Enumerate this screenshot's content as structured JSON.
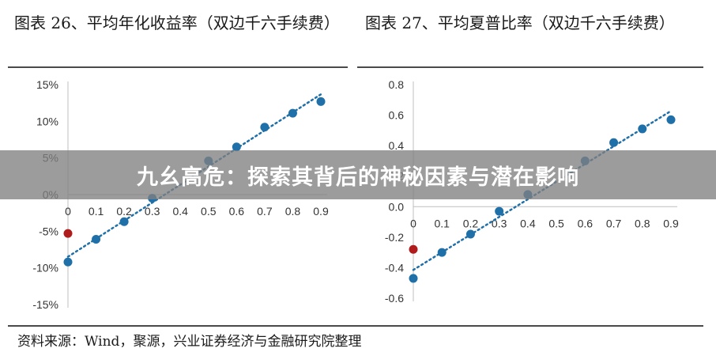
{
  "panels": {
    "left_title": "图表 26、平均年化收益率（双边千六手续费）",
    "right_title": "图表 27、平均夏普比率（双边千六手续费）"
  },
  "banner": {
    "text": "九幺高危：探索其背后的神秘因素与潜在影响"
  },
  "source": {
    "text": "资料来源：Wind，聚源，兴业证券经济与金融研究院整理"
  },
  "colors": {
    "point": "#1f6fa8",
    "highlight": "#b01c1c",
    "trend": "#1f6fa8"
  },
  "chart_data": [
    {
      "type": "scatter",
      "title": "平均年化收益率（双边千六手续费）",
      "x_ticks": [
        "0",
        "0.1",
        "0.2",
        "0.3",
        "0.4",
        "0.5",
        "0.6",
        "0.7",
        "0.8",
        "0.9"
      ],
      "y_ticks": [
        "15%",
        "10%",
        "5%",
        "0%",
        "-5%",
        "-10%",
        "-15%"
      ],
      "y_tick_values": [
        0.15,
        0.1,
        0.05,
        0,
        -0.05,
        -0.1,
        -0.15
      ],
      "ylim": [
        -0.15,
        0.15
      ],
      "xlim": [
        0,
        0.9
      ],
      "x_axis_at_y": 0,
      "trendline": true,
      "series": [
        {
          "x": [
            0,
            0.1,
            0.2,
            0.3,
            0.5,
            0.6,
            0.7,
            0.8,
            0.9
          ],
          "y": [
            -0.092,
            -0.061,
            -0.037,
            -0.005,
            0.046,
            0.065,
            0.092,
            0.111,
            0.127
          ]
        }
      ],
      "highlight_points": [
        {
          "x": 0,
          "y": -0.053
        }
      ]
    },
    {
      "type": "scatter",
      "title": "平均夏普比率（双边千六手续费）",
      "x_ticks": [
        "0",
        "0.1",
        "0.2",
        "0.3",
        "0.4",
        "0.5",
        "0.6",
        "0.7",
        "0.8",
        "0.9"
      ],
      "y_ticks": [
        "0.8",
        "0.6",
        "0.4",
        "0.2",
        "0.0",
        "-0.2",
        "-0.4",
        "-0.6"
      ],
      "y_tick_values": [
        0.8,
        0.6,
        0.4,
        0.2,
        0,
        -0.2,
        -0.4,
        -0.6
      ],
      "ylim": [
        -0.6,
        0.8
      ],
      "xlim": [
        0,
        0.9
      ],
      "x_axis_at_y": 0,
      "trendline": true,
      "series": [
        {
          "x": [
            0,
            0.1,
            0.2,
            0.3,
            0.4,
            0.6,
            0.7,
            0.8,
            0.9
          ],
          "y": [
            -0.47,
            -0.3,
            -0.18,
            -0.03,
            0.08,
            0.3,
            0.42,
            0.51,
            0.57
          ]
        }
      ],
      "highlight_points": [
        {
          "x": 0,
          "y": -0.28
        }
      ]
    }
  ]
}
